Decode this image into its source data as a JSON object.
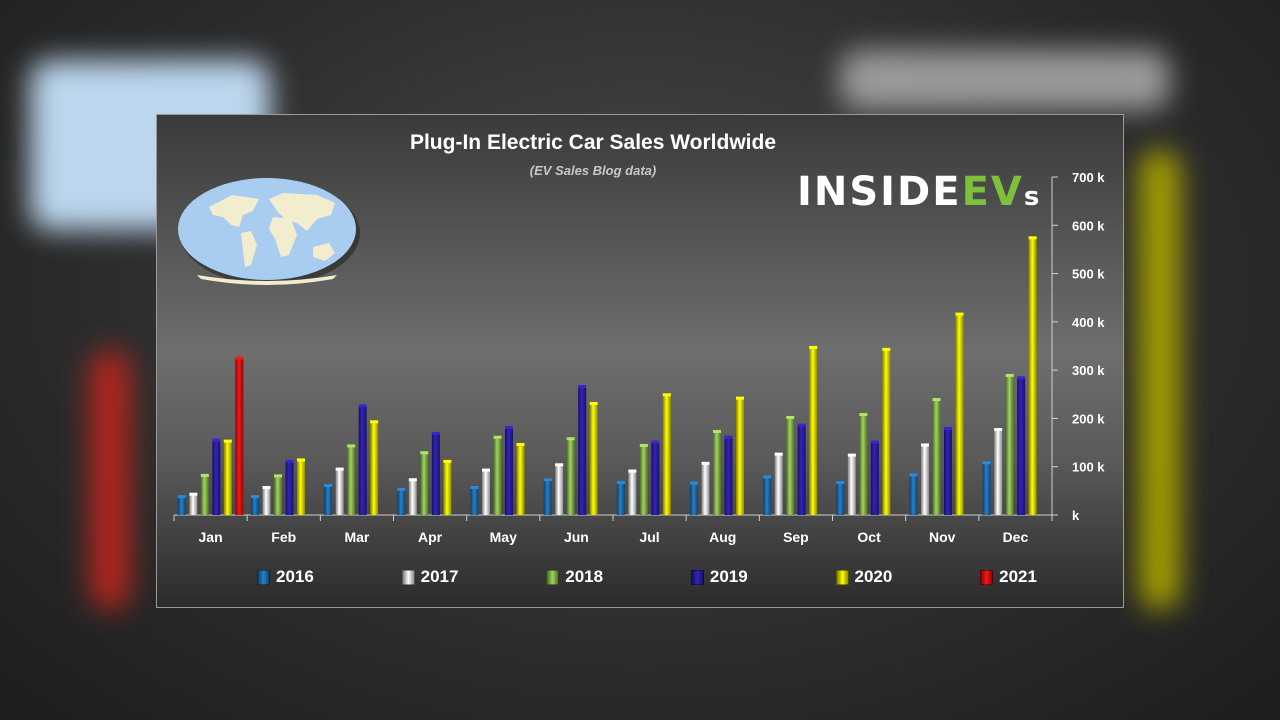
{
  "chart_data": {
    "type": "bar",
    "title": "Plug-In Electric Car Sales Worldwide",
    "subtitle": "(EV Sales Blog data)",
    "categories": [
      "Jan",
      "Feb",
      "Mar",
      "Apr",
      "May",
      "Jun",
      "Jul",
      "Aug",
      "Sep",
      "Oct",
      "Nov",
      "Dec"
    ],
    "y_tick_labels": [
      "k",
      "100 k",
      "200 k",
      "300 k",
      "400 k",
      "500 k",
      "600 k",
      "700 k"
    ],
    "y_ticks": [
      0,
      100,
      200,
      300,
      400,
      500,
      600,
      700
    ],
    "ylim": [
      0,
      700
    ],
    "y_axis_position": "right",
    "legend_position": "bottom",
    "series": [
      {
        "name": "2016",
        "color": "#1f6fb3",
        "values": [
          37,
          37,
          60,
          52,
          56,
          72,
          66,
          65,
          78,
          66,
          82,
          107
        ]
      },
      {
        "name": "2017",
        "color": "#e9e9e9",
        "values": [
          42,
          56,
          94,
          72,
          92,
          103,
          90,
          106,
          125,
          123,
          144,
          176
        ]
      },
      {
        "name": "2018",
        "color": "#8ab94f",
        "values": [
          81,
          80,
          142,
          128,
          160,
          157,
          143,
          172,
          201,
          207,
          238,
          288
        ]
      },
      {
        "name": "2019",
        "color": "#2b1ea6",
        "values": [
          154,
          110,
          225,
          168,
          180,
          265,
          150,
          160,
          185,
          150,
          178,
          283
        ]
      },
      {
        "name": "2020",
        "color": "#f2e600",
        "values": [
          152,
          113,
          192,
          110,
          145,
          230,
          248,
          241,
          346,
          342,
          415,
          573
        ]
      },
      {
        "name": "2021",
        "color": "#dd1111",
        "values": [
          324,
          null,
          null,
          null,
          null,
          null,
          null,
          null,
          null,
          null,
          null,
          null
        ]
      }
    ]
  },
  "brand": {
    "part1": "INSIDE",
    "part2": "EV",
    "part3": "s"
  }
}
